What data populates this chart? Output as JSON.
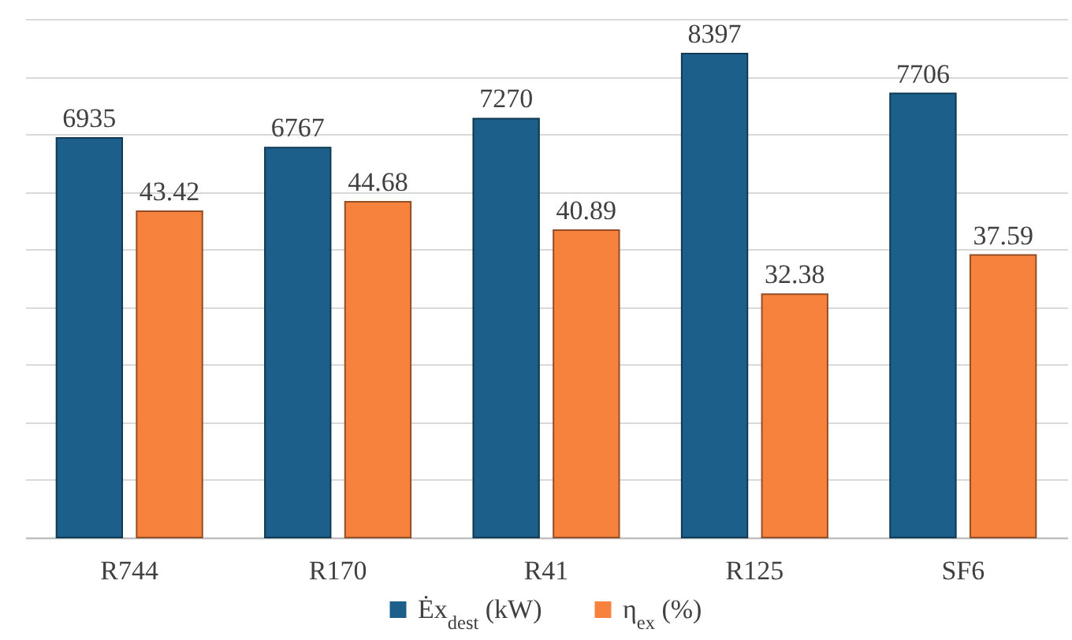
{
  "chart_data": {
    "type": "bar",
    "categories": [
      "R744",
      "R170",
      "R41",
      "R125",
      "SF6"
    ],
    "series": [
      {
        "name": "Ėx$_{dest}$ (kW)",
        "color": "#1b5f8a",
        "values": [
          6935,
          6767,
          7270,
          8397,
          7706
        ]
      },
      {
        "name": "η$_{ex}$ (%)",
        "color": "#f7823e",
        "values": [
          43.42,
          44.68,
          40.89,
          32.38,
          37.59
        ],
        "axis": "y2"
      }
    ],
    "ylim": [
      0,
      9000
    ],
    "yticks": [
      {
        "value": 0,
        "label": null
      },
      {
        "value": 1000,
        "label": null
      },
      {
        "value": 2000,
        "label": null
      },
      {
        "value": 3000,
        "label": null
      },
      {
        "value": 4000,
        "label": null
      },
      {
        "value": 5000,
        "label": null
      },
      {
        "value": 6000,
        "label": null
      },
      {
        "value": 7000,
        "label": null
      },
      {
        "value": 8000,
        "label": null
      },
      {
        "value": 9000,
        "label": null
      }
    ],
    "y2lim": [
      0,
      69
    ],
    "grid": "y",
    "legend": "bottom",
    "tick_labels": "x",
    "data_labels": true
  }
}
